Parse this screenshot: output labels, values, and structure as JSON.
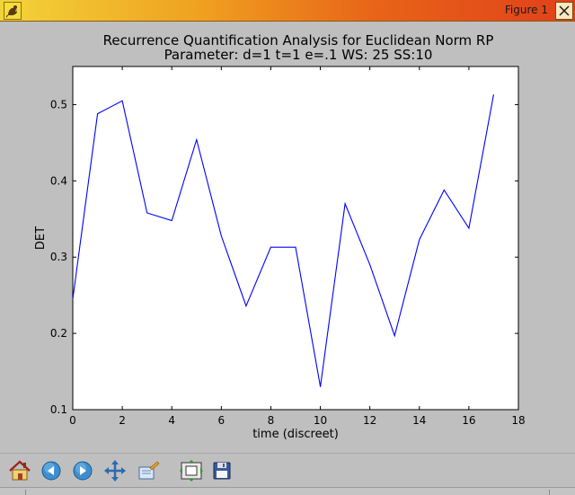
{
  "window": {
    "title": "Figure 1"
  },
  "toolbar": {
    "buttons": [
      {
        "name": "home",
        "icon": "home-icon"
      },
      {
        "name": "back",
        "icon": "arrow-left-icon"
      },
      {
        "name": "forward",
        "icon": "arrow-right-icon"
      },
      {
        "name": "pan",
        "icon": "move-icon"
      },
      {
        "name": "zoom",
        "icon": "zoom-rect-icon"
      },
      {
        "name": "subplots",
        "icon": "subplots-icon"
      },
      {
        "name": "save",
        "icon": "save-icon"
      }
    ]
  },
  "chart_data": {
    "type": "line",
    "title": "Recurrence Quantification Analysis for Euclidean Norm RP",
    "subtitle": "Parameter: d=1 t=1 e=.1 WS: 25 SS:10",
    "xlabel": "time (discreet)",
    "ylabel": "DET",
    "xlim": [
      0,
      18
    ],
    "ylim": [
      0.1,
      0.55
    ],
    "xticks": [
      0,
      2,
      4,
      6,
      8,
      10,
      12,
      14,
      16,
      18
    ],
    "yticks": [
      0.1,
      0.2,
      0.3,
      0.4,
      0.5
    ],
    "xtick_labels": [
      "0",
      "2",
      "4",
      "6",
      "8",
      "10",
      "12",
      "14",
      "16",
      "18"
    ],
    "ytick_labels": [
      "0.1",
      "0.2",
      "0.3",
      "0.4",
      "0.5"
    ],
    "grid": false,
    "line_color": "#0000ff",
    "x": [
      0,
      1,
      2,
      3,
      4,
      5,
      6,
      7,
      8,
      9,
      10,
      11,
      12,
      13,
      14,
      15,
      16,
      17
    ],
    "values": [
      0.245,
      0.488,
      0.505,
      0.358,
      0.348,
      0.454,
      0.328,
      0.236,
      0.313,
      0.313,
      0.13,
      0.37,
      0.29,
      0.197,
      0.323,
      0.388,
      0.338,
      0.513
    ]
  }
}
